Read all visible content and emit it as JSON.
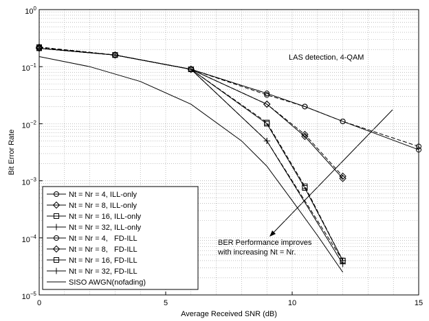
{
  "chart_data": {
    "type": "line",
    "xlabel": "Average Received SNR (dB)",
    "ylabel": "Bit Error Rate",
    "xlim": [
      0,
      15
    ],
    "xticks": [
      0,
      5,
      10,
      15
    ],
    "ylim": [
      1e-05,
      1
    ],
    "yscale": "log",
    "yticks": [
      {
        "value": 1e-05,
        "label": "10^-5"
      },
      {
        "value": 0.0001,
        "label": "10^-4"
      },
      {
        "value": 0.001,
        "label": "10^-3"
      },
      {
        "value": 0.01,
        "label": "10^-2"
      },
      {
        "value": 0.1,
        "label": "10^-1"
      },
      {
        "value": 1,
        "label": "10^0"
      }
    ],
    "grid": true,
    "minor_grid": true,
    "legend": "lower left",
    "annotations": [
      "LAS detection, 4-QAM",
      "BER Performance improves",
      "with increasing Nt = Nr."
    ],
    "series": [
      {
        "name": "Nt = Nr = 4, ILL-only",
        "color": "#000",
        "marker": "circle",
        "linestyle": "dashed",
        "x": [
          0,
          3,
          6,
          9,
          10.5,
          12,
          15
        ],
        "values": [
          0.22,
          0.16,
          0.09,
          0.032,
          0.02,
          0.011,
          0.004
        ]
      },
      {
        "name": "Nt = Nr = 8, ILL-only",
        "color": "#000",
        "marker": "diamond",
        "linestyle": "dashed",
        "x": [
          0,
          3,
          6,
          9,
          10.5,
          12
        ],
        "values": [
          0.22,
          0.16,
          0.09,
          0.022,
          0.0065,
          0.0012
        ]
      },
      {
        "name": "Nt = Nr = 16, ILL-only",
        "color": "#000",
        "marker": "square",
        "linestyle": "dashed",
        "x": [
          0,
          3,
          6,
          9,
          10.5,
          12
        ],
        "values": [
          0.22,
          0.16,
          0.09,
          0.0105,
          0.0008,
          4e-05
        ]
      },
      {
        "name": "Nt = Nr = 32, ILL-only",
        "color": "#000",
        "marker": "plus",
        "linestyle": "dashed",
        "x": [
          0,
          3,
          6,
          9,
          12
        ],
        "values": [
          0.22,
          0.16,
          0.09,
          0.005,
          4e-05
        ]
      },
      {
        "name": "Nt = Nr = 4,   FD-ILL",
        "color": "#000",
        "marker": "circle",
        "linestyle": "solid",
        "x": [
          0,
          3,
          6,
          9,
          10.5,
          12,
          15
        ],
        "values": [
          0.21,
          0.16,
          0.09,
          0.034,
          0.02,
          0.011,
          0.0035
        ]
      },
      {
        "name": "Nt = Nr = 8,   FD-ILL",
        "color": "#000",
        "marker": "diamond",
        "linestyle": "solid",
        "x": [
          0,
          3,
          6,
          9,
          10.5,
          12
        ],
        "values": [
          0.21,
          0.16,
          0.09,
          0.022,
          0.006,
          0.0011
        ]
      },
      {
        "name": "Nt = Nr = 16, FD-ILL",
        "color": "#000",
        "marker": "square",
        "linestyle": "solid",
        "x": [
          0,
          3,
          6,
          9,
          10.5,
          12
        ],
        "values": [
          0.21,
          0.16,
          0.09,
          0.01,
          0.00075,
          4e-05
        ]
      },
      {
        "name": "Nt = Nr = 32, FD-ILL",
        "color": "#000",
        "marker": "plus",
        "linestyle": "solid",
        "x": [
          0,
          3,
          6,
          9,
          12
        ],
        "values": [
          0.21,
          0.16,
          0.09,
          0.005,
          3.5e-05
        ]
      },
      {
        "name": "SISO AWGN(nofading)",
        "color": "#000",
        "marker": "none",
        "linestyle": "solid",
        "x": [
          0,
          2,
          4,
          6,
          8,
          9,
          10,
          11,
          12
        ],
        "values": [
          0.15,
          0.1,
          0.055,
          0.022,
          0.005,
          0.0018,
          0.00045,
          0.00011,
          2.5e-05
        ]
      }
    ]
  }
}
